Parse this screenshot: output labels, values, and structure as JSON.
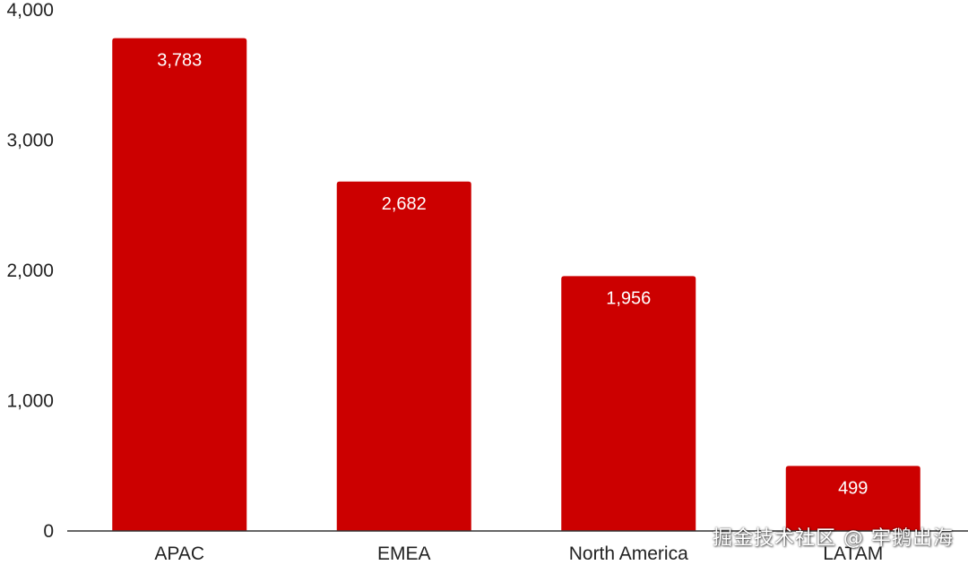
{
  "chart_data": {
    "type": "bar",
    "categories": [
      "APAC",
      "EMEA",
      "North America",
      "LATAM"
    ],
    "values": [
      3783,
      2682,
      1956,
      499
    ],
    "value_labels": [
      "3,783",
      "2,682",
      "1,956",
      "499"
    ],
    "title": "",
    "xlabel": "",
    "ylabel": "",
    "ylim": [
      0,
      4000
    ],
    "yticks": [
      0,
      1000,
      2000,
      3000,
      4000
    ],
    "ytick_labels": [
      "0",
      "1,000",
      "2,000",
      "3,000",
      "4,000"
    ],
    "grid": false,
    "legend": "none",
    "bar_color": "#cc0000",
    "data_label_color": "#ffffff"
  },
  "watermark": {
    "text": "掘金技术社区 @ 牢鹅出海"
  }
}
